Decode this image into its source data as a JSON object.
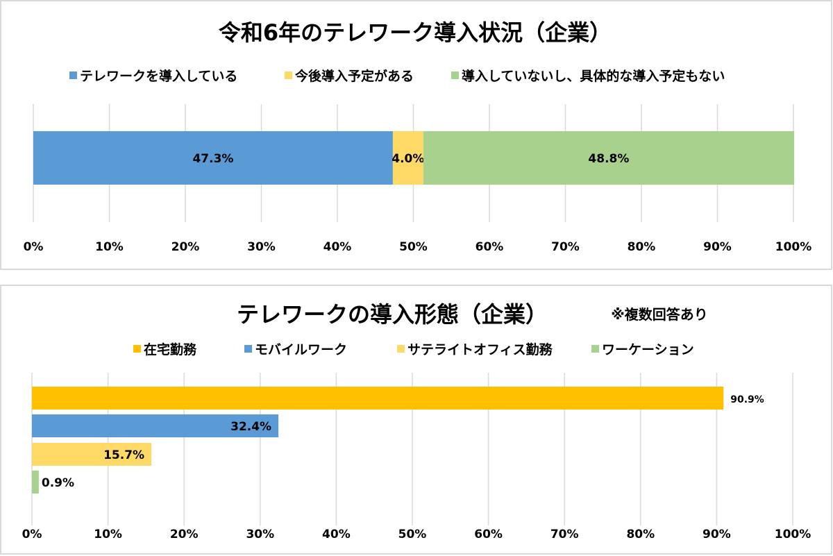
{
  "chart_data": [
    {
      "type": "bar",
      "orientation": "horizontal",
      "stacked": true,
      "title": "令和6年のテレワーク導入状況（企業）",
      "legend_position": "top",
      "grid": true,
      "xlim": [
        0,
        100
      ],
      "x_ticks": [
        "0%",
        "10%",
        "20%",
        "30%",
        "40%",
        "50%",
        "60%",
        "70%",
        "80%",
        "90%",
        "100%"
      ],
      "series": [
        {
          "name": "テレワークを導入している",
          "value": 47.3,
          "label": "47.3%",
          "color": "#5B9BD5"
        },
        {
          "name": "今後導入予定がある",
          "value": 4.0,
          "label": "4.0%",
          "color": "#FFD966"
        },
        {
          "name": "導入していないし、具体的な導入予定もない",
          "value": 48.8,
          "label": "48.8%",
          "color": "#A9D18E"
        }
      ]
    },
    {
      "type": "bar",
      "orientation": "horizontal",
      "stacked": false,
      "title": "テレワークの導入形態（企業）",
      "note": "※複数回答あり",
      "legend_position": "top",
      "grid": true,
      "xlim": [
        0,
        100
      ],
      "x_ticks": [
        "0%",
        "10%",
        "20%",
        "30%",
        "40%",
        "50%",
        "60%",
        "70%",
        "80%",
        "90%",
        "100%"
      ],
      "series": [
        {
          "name": "在宅勤務",
          "value": 90.9,
          "label": "90.9%",
          "color": "#FFC000"
        },
        {
          "name": "モバイルワーク",
          "value": 32.4,
          "label": "32.4%",
          "color": "#5B9BD5"
        },
        {
          "name": "サテライトオフィス勤務",
          "value": 15.7,
          "label": "15.7%",
          "color": "#FFD966"
        },
        {
          "name": "ワーケーション",
          "value": 0.9,
          "label": "0.9%",
          "color": "#A9D18E"
        }
      ]
    }
  ]
}
